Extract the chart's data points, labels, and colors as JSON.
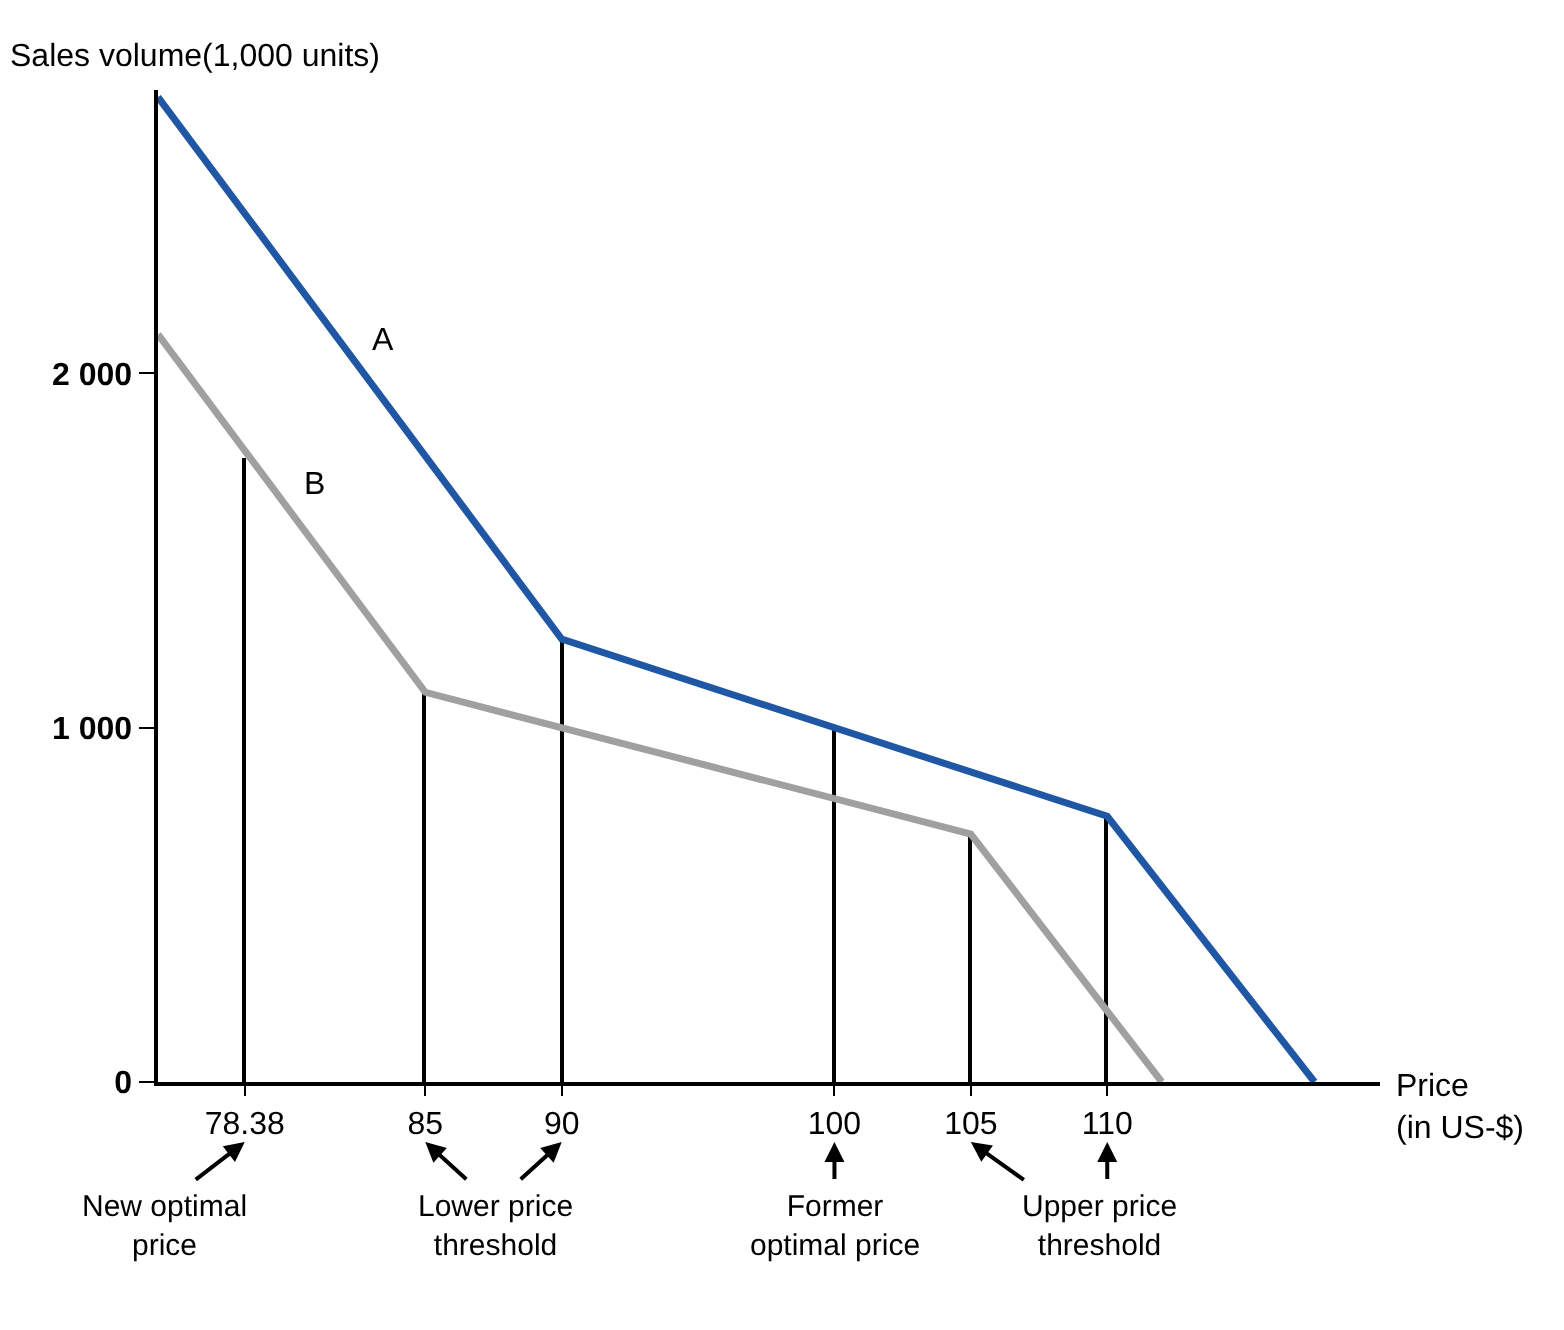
{
  "chart_data": {
    "type": "line",
    "ylabel": "Sales volume(1,000 units)",
    "xlabel": "Price\n(in US-$)",
    "xlim": [
      75.2,
      120
    ],
    "ylim": [
      0,
      2800
    ],
    "xticks": [
      78.38,
      85,
      90,
      100,
      105,
      110
    ],
    "yticks": [
      0,
      {
        "value": 1000,
        "label": "1 000"
      },
      {
        "value": 2000,
        "label": "2 000"
      }
    ],
    "legend": false,
    "marker": "none",
    "line_style": "solid",
    "series": [
      {
        "type": "bar",
        "color": "#000000",
        "x": [
          78.38,
          85,
          90,
          100,
          105,
          110
        ],
        "values": [
          1760,
          1100,
          1250,
          1000,
          700,
          750
        ]
      },
      {
        "name": "A",
        "color": "#1f57a4",
        "x": [
          75.2,
          90,
          110,
          117.6
        ],
        "values": [
          2780,
          1250,
          750,
          0
        ]
      },
      {
        "name": "B",
        "color": "#a0a0a0",
        "x": [
          75.2,
          85,
          105,
          112
        ],
        "values": [
          2110,
          1100,
          700,
          0
        ]
      }
    ],
    "annotations": [
      "New optimal\nprice",
      "Lower price\nthreshold",
      "Former\noptimal price",
      "Upper price\nthreshold"
    ]
  }
}
